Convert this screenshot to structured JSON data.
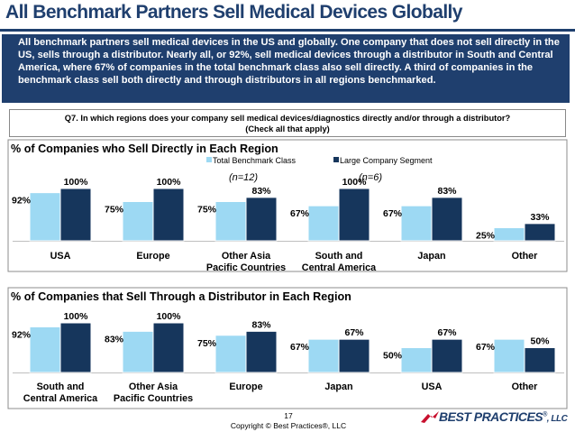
{
  "page": {
    "title": "All Benchmark Partners Sell Medical Devices Globally",
    "summary": "All benchmark partners sell medical devices in the US and globally. One company that does not sell directly in the US, sells through a distributor. Nearly all, or 92%, sell medical devices through a distributor in South and Central America, where 67% of companies in the total benchmark class also sell directly. A third of companies in the benchmark class sell both directly and through distributors in all regions benchmarked.",
    "question_line1": "Q7. In which regions does your company sell medical devices/diagnostics directly and/or through a distributor?",
    "question_line2": "(Check all that apply)",
    "page_number": "17",
    "copyright": "Copyright ©  Best Practices®, LLC",
    "logo_text": "BEST PRACTICES",
    "logo_suffix": "LLC",
    "logo_reg": "®"
  },
  "colors": {
    "title": "#1F3F6E",
    "benchmark": "#9DD9F3",
    "large": "#16365C"
  },
  "chart_data": [
    {
      "type": "bar",
      "title": "% of Companies who Sell Directly in Each Region",
      "legend": [
        "Total Benchmark Class",
        "Large Company Segment"
      ],
      "series_notes": [
        "(n=12)",
        "(n=6)"
      ],
      "categories": [
        "USA",
        "Europe",
        "Other Asia Pacific Countries",
        "South and Central America",
        "Japan",
        "Other"
      ],
      "category_lines": [
        [
          "USA"
        ],
        [
          "Europe"
        ],
        [
          "Other Asia",
          "Pacific Countries"
        ],
        [
          "South and",
          "Central America"
        ],
        [
          "Japan"
        ],
        [
          "Other"
        ]
      ],
      "series": [
        {
          "name": "Total Benchmark Class",
          "values": [
            92,
            75,
            75,
            67,
            67,
            25
          ],
          "labels": [
            "92%",
            "75%",
            "75%",
            "67%",
            "67%",
            "25%"
          ]
        },
        {
          "name": "Large Company Segment",
          "values": [
            100,
            100,
            83,
            100,
            83,
            33
          ],
          "labels": [
            "100%",
            "100%",
            "83%",
            "100%",
            "83%",
            "33%"
          ]
        }
      ],
      "ylim": [
        0,
        100
      ]
    },
    {
      "type": "bar",
      "title": "% of Companies that Sell Through a Distributor in Each Region",
      "categories": [
        "South and Central America",
        "Other Asia Pacific Countries",
        "Europe",
        "Japan",
        "USA",
        "Other"
      ],
      "category_lines": [
        [
          "South and",
          "Central America"
        ],
        [
          "Other Asia",
          "Pacific Countries"
        ],
        [
          "Europe"
        ],
        [
          "Japan"
        ],
        [
          "USA"
        ],
        [
          "Other"
        ]
      ],
      "series": [
        {
          "name": "Total Benchmark Class",
          "values": [
            92,
            83,
            75,
            67,
            50,
            67
          ],
          "labels": [
            "92%",
            "83%",
            "75%",
            "67%",
            "50%",
            "67%"
          ]
        },
        {
          "name": "Large Company Segment",
          "values": [
            100,
            100,
            83,
            67,
            67,
            50
          ],
          "labels": [
            "100%",
            "100%",
            "83%",
            "67%",
            "67%",
            "50%"
          ]
        }
      ],
      "ylim": [
        0,
        100
      ]
    }
  ]
}
